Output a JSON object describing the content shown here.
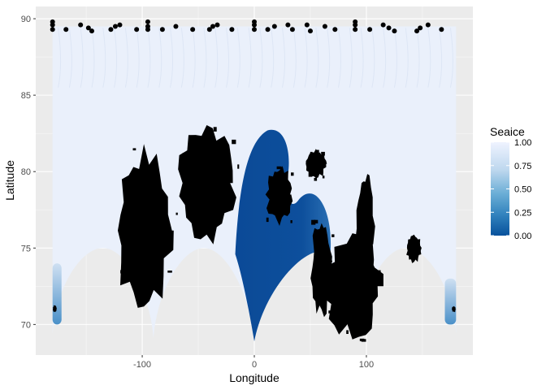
{
  "chart_data": {
    "type": "heatmap",
    "title": "",
    "xlabel": "Longitude",
    "ylabel": "Latitude",
    "xlim": [
      -195,
      195
    ],
    "ylim": [
      68,
      90.8
    ],
    "x_ticks": [
      -100,
      0,
      100
    ],
    "x_tick_labels": [
      "-100",
      "0",
      "100"
    ],
    "y_ticks": [
      70,
      75,
      80,
      85,
      90
    ],
    "y_tick_labels": [
      "70",
      "75",
      "80",
      "85",
      "90"
    ],
    "grid": true,
    "legend": {
      "title": "Seaice",
      "position": "right",
      "labels": [
        "1.00",
        "0.75",
        "0.50",
        "0.25",
        "0.00"
      ],
      "values": [
        1.0,
        0.75,
        0.5,
        0.25,
        0.0
      ],
      "color_low": "#08519c",
      "color_high": "#eff3ff"
    },
    "colors": {
      "panel": "#ebebeb",
      "grid": "#ffffff",
      "land": "#000000",
      "ice_high": "#eaf0fb",
      "ice_mid": "#4a90c8",
      "ice_low": "#0b4a97"
    },
    "regions": {
      "ice_region": {
        "lon_range": [
          -180,
          180
        ],
        "lat_top": 89.5,
        "arch_bottoms": [
          [
            -180,
            69.4
          ],
          [
            -90,
            69.1
          ],
          [
            0,
            68.9
          ],
          [
            90,
            68.9
          ],
          [
            180,
            69.4
          ]
        ],
        "arch_tops": [
          [
            -135,
            75.0
          ],
          [
            -45,
            75.0
          ],
          [
            45,
            74.8
          ],
          [
            135,
            75.0
          ]
        ]
      },
      "low_ice_zone": {
        "lon_range": [
          -18,
          70
        ],
        "lat_range": [
          69,
          82.7
        ],
        "value": 0.08
      },
      "mid_ice_edges": [
        {
          "lon_range": [
            -180,
            -172
          ],
          "lat_range": [
            70,
            74
          ],
          "value": 0.45
        },
        {
          "lon_range": [
            170,
            180
          ],
          "lat_range": [
            70,
            73
          ],
          "value": 0.55
        }
      ],
      "land_masses": [
        {
          "name": "canadian-archipelago",
          "lon_range": [
            -125,
            -72
          ],
          "lat_range": [
            70.5,
            81.8
          ]
        },
        {
          "name": "greenland",
          "lon_range": [
            -70,
            -15
          ],
          "lat_range": [
            75,
            83.5
          ]
        },
        {
          "name": "svalbard",
          "lon_range": [
            10,
            35
          ],
          "lat_range": [
            76.5,
            80.5
          ]
        },
        {
          "name": "franz-josef-land",
          "lon_range": [
            45,
            65
          ],
          "lat_range": [
            79.5,
            81.5
          ]
        },
        {
          "name": "novaya-zemlya",
          "lon_range": [
            50,
            70
          ],
          "lat_range": [
            70.5,
            77
          ]
        },
        {
          "name": "severnaya-zemlya",
          "lon_range": [
            90,
            108
          ],
          "lat_range": [
            70,
            80.5
          ]
        },
        {
          "name": "siberia-coast",
          "lon_range": [
            60,
            115
          ],
          "lat_range": [
            69,
            76
          ]
        },
        {
          "name": "new-siberian-islands",
          "lon_range": [
            135,
            150
          ],
          "lat_range": [
            74,
            76
          ]
        },
        {
          "name": "alaska-coast",
          "lon_range": [
            -180,
            -176
          ],
          "lat_range": [
            70.8,
            71.3
          ]
        },
        {
          "name": "chukotka-coast",
          "lon_range": [
            176,
            180
          ],
          "lat_range": [
            70.8,
            71.2
          ]
        }
      ]
    },
    "points": [
      {
        "lon": -180,
        "lat": 89.8
      },
      {
        "lon": -180,
        "lat": 89.6
      },
      {
        "lon": -180,
        "lat": 89.3
      },
      {
        "lon": -168,
        "lat": 89.3
      },
      {
        "lon": -155,
        "lat": 89.6
      },
      {
        "lon": -148,
        "lat": 89.4
      },
      {
        "lon": -145,
        "lat": 89.2
      },
      {
        "lon": -128,
        "lat": 89.3
      },
      {
        "lon": -124,
        "lat": 89.5
      },
      {
        "lon": -120,
        "lat": 89.6
      },
      {
        "lon": -105,
        "lat": 89.3
      },
      {
        "lon": -95,
        "lat": 89.8
      },
      {
        "lon": -95,
        "lat": 89.5
      },
      {
        "lon": -95,
        "lat": 89.3
      },
      {
        "lon": -82,
        "lat": 89.3
      },
      {
        "lon": -70,
        "lat": 89.5
      },
      {
        "lon": -55,
        "lat": 89.3
      },
      {
        "lon": -40,
        "lat": 89.3
      },
      {
        "lon": -37,
        "lat": 89.5
      },
      {
        "lon": -33,
        "lat": 89.6
      },
      {
        "lon": -20,
        "lat": 89.3
      },
      {
        "lon": 0,
        "lat": 89.8
      },
      {
        "lon": 0,
        "lat": 89.6
      },
      {
        "lon": 0,
        "lat": 89.3
      },
      {
        "lon": 12,
        "lat": 89.3
      },
      {
        "lon": 18,
        "lat": 89.5
      },
      {
        "lon": 30,
        "lat": 89.6
      },
      {
        "lon": 34,
        "lat": 89.3
      },
      {
        "lon": 47,
        "lat": 89.6
      },
      {
        "lon": 50,
        "lat": 89.2
      },
      {
        "lon": 63,
        "lat": 89.5
      },
      {
        "lon": 72,
        "lat": 89.3
      },
      {
        "lon": 90,
        "lat": 89.8
      },
      {
        "lon": 90,
        "lat": 89.6
      },
      {
        "lon": 90,
        "lat": 89.3
      },
      {
        "lon": 103,
        "lat": 89.3
      },
      {
        "lon": 115,
        "lat": 89.6
      },
      {
        "lon": 120,
        "lat": 89.4
      },
      {
        "lon": 125,
        "lat": 89.2
      },
      {
        "lon": 145,
        "lat": 89.2
      },
      {
        "lon": 148,
        "lat": 89.4
      },
      {
        "lon": 155,
        "lat": 89.6
      },
      {
        "lon": 167,
        "lat": 89.3
      }
    ]
  }
}
